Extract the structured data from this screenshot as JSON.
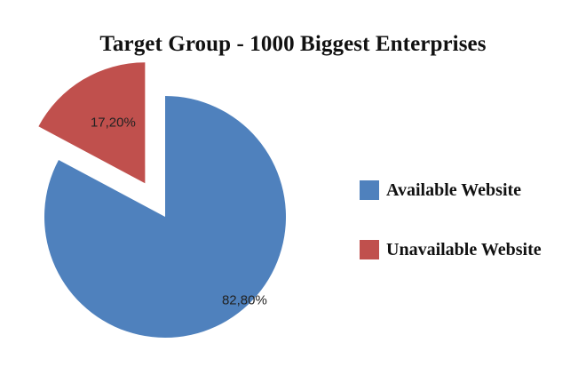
{
  "chart_data": {
    "type": "pie",
    "title": "Target Group - 1000 Biggest Enterprises",
    "slices": [
      {
        "label": "Available Website",
        "value": 82.8,
        "display": "82,80%",
        "color": "#4F81BD"
      },
      {
        "label": "Unavailable Website",
        "value": 17.2,
        "display": "17,20%",
        "color": "#C0504D"
      }
    ],
    "exploded_slice": "Unavailable Website",
    "legend": {
      "placement": "right",
      "entries": [
        "Available Website",
        "Unavailable Website"
      ]
    }
  }
}
